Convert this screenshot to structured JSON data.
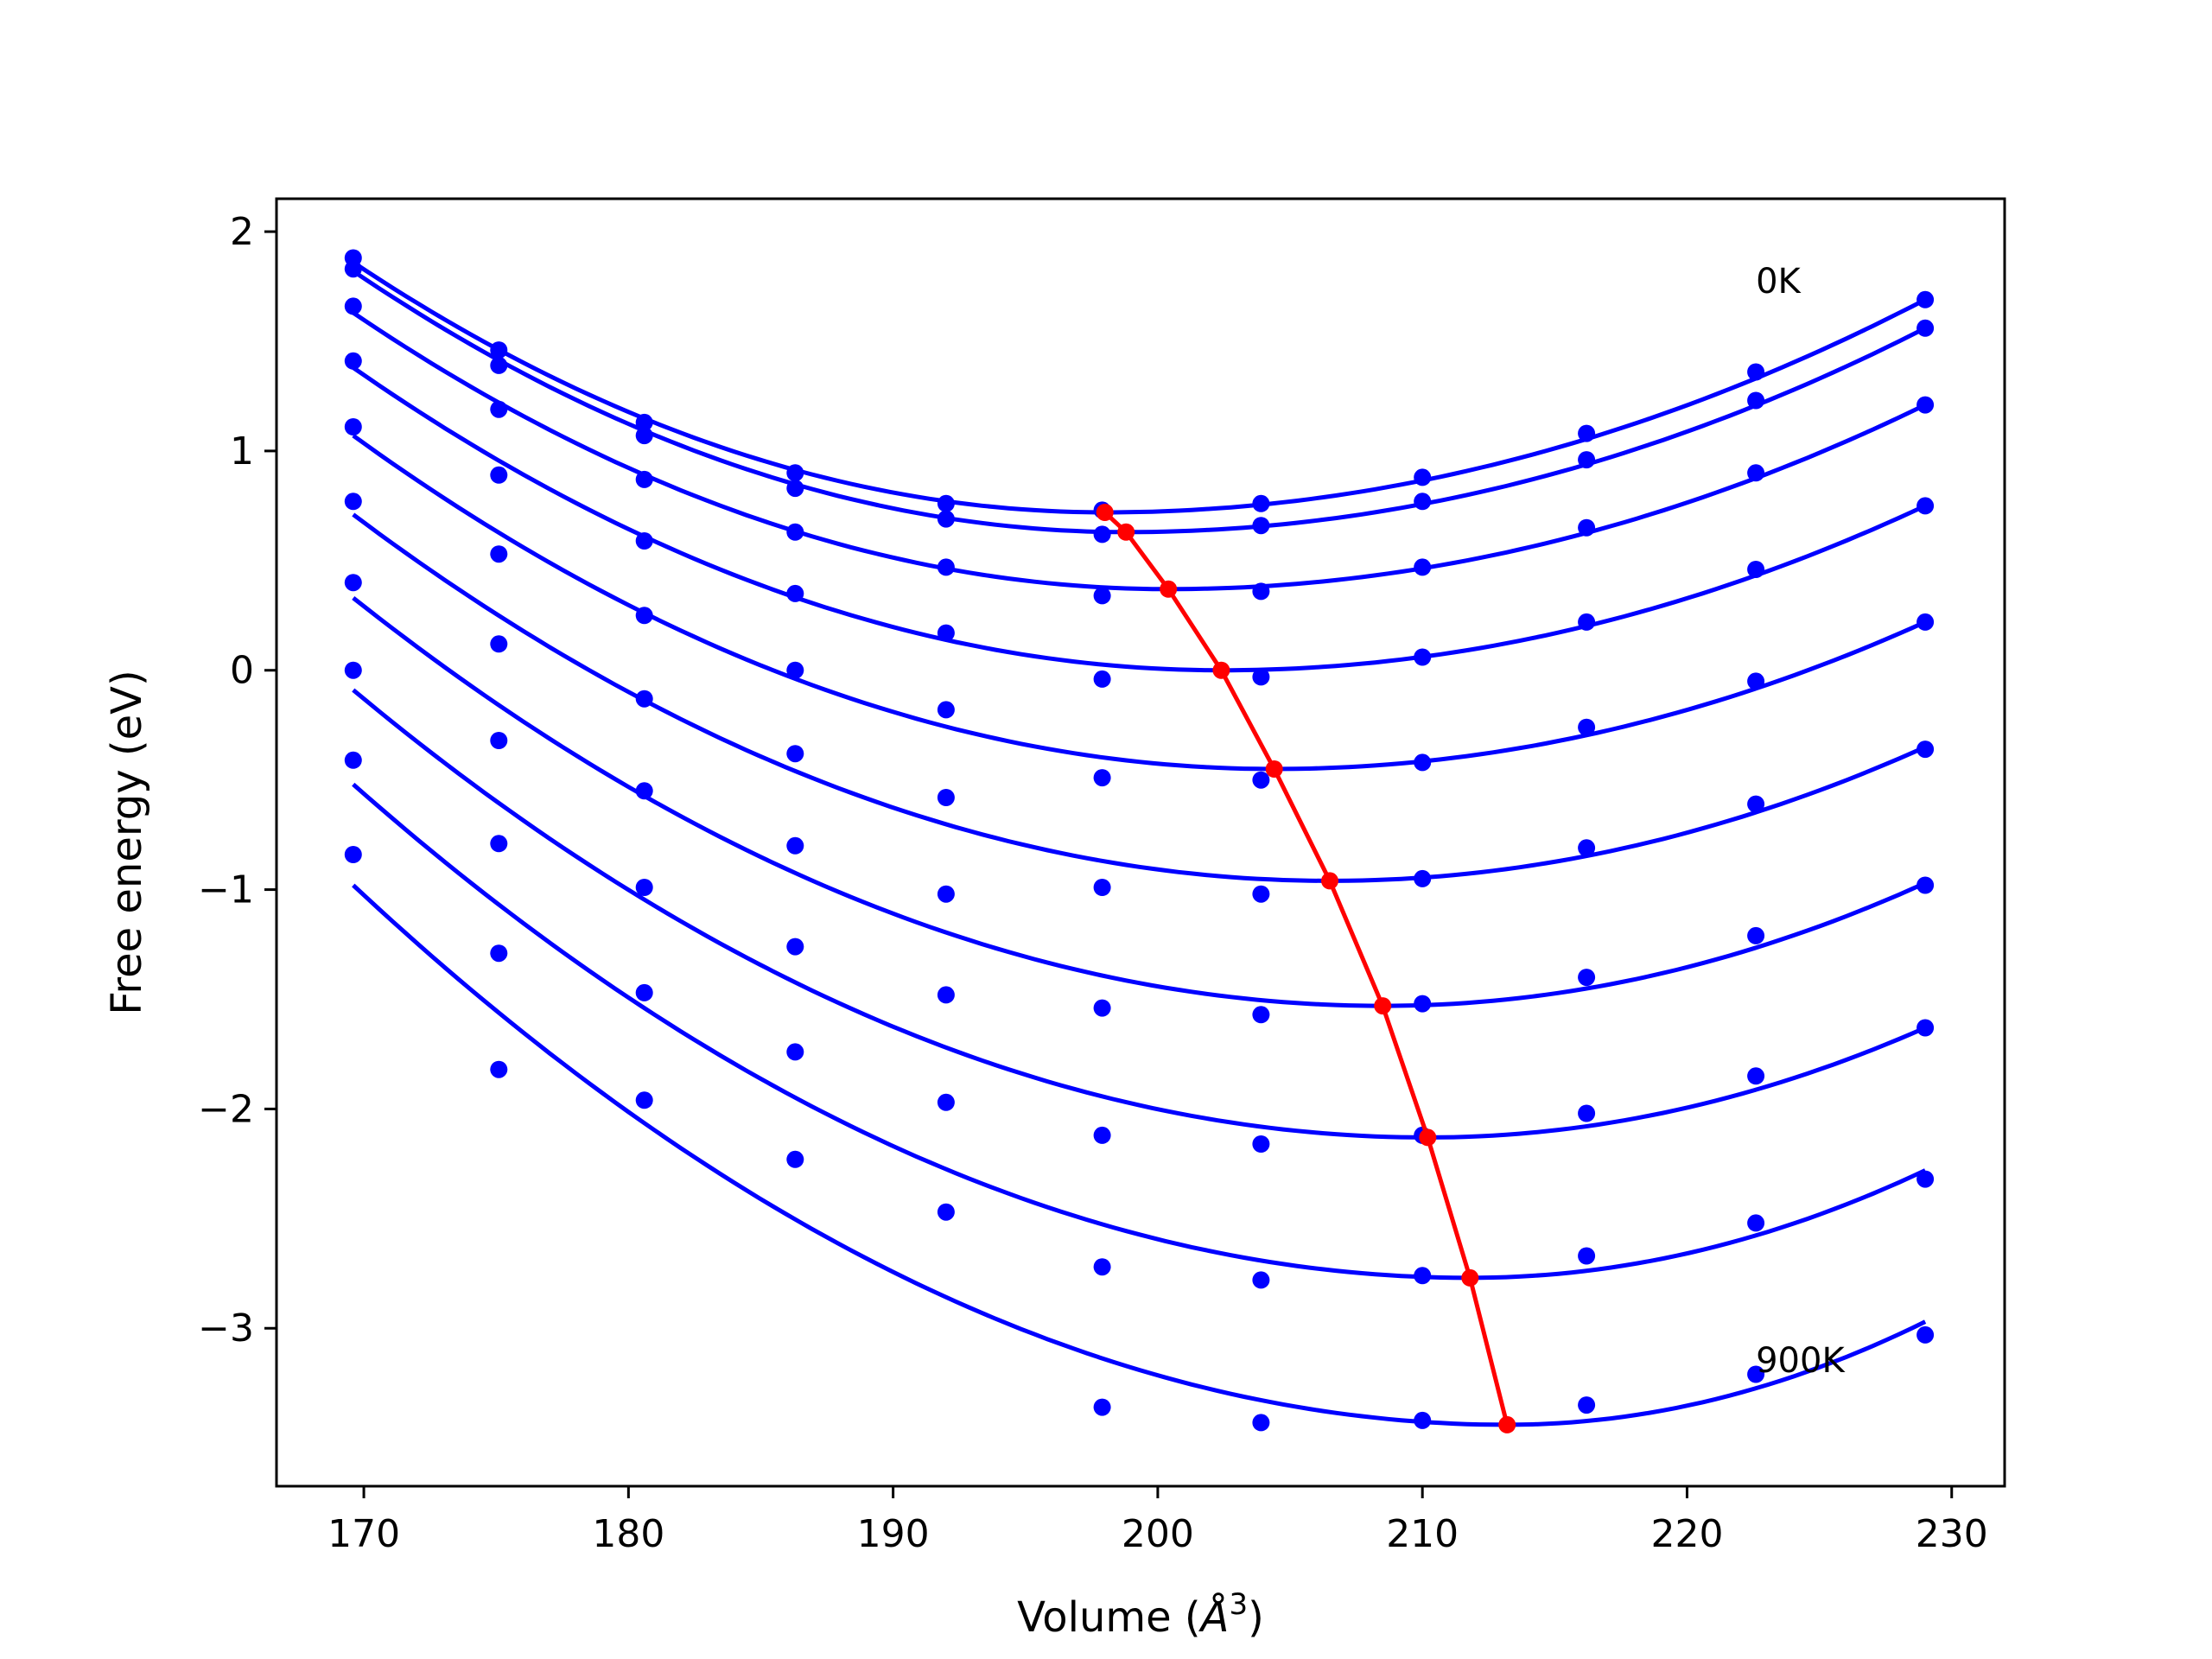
{
  "chart_data": {
    "type": "line",
    "xlabel_main": "Volume (",
    "xlabel_unit": "Å",
    "xlabel_exp": "3",
    "xlabel_close": ")",
    "ylabel": "Free energy (eV)",
    "xlim": [
      166.7,
      232.0
    ],
    "ylim": [
      -3.72,
      2.15
    ],
    "xticks": [
      170,
      180,
      190,
      200,
      210,
      220,
      230
    ],
    "yticks": [
      2,
      1,
      0,
      -1,
      -2,
      -3
    ],
    "xtick_labels": [
      "170",
      "180",
      "190",
      "200",
      "210",
      "220",
      "230"
    ],
    "ytick_labels": [
      "2",
      "1",
      "0",
      "−1",
      "−2",
      "−3"
    ],
    "annotations": [
      {
        "text": "0K",
        "x": 222.6,
        "y": 1.72
      },
      {
        "text": "900K",
        "x": 222.6,
        "y": -3.2
      }
    ],
    "colors": {
      "points": "#0000ff",
      "fits": "#0000ff",
      "minima": "#ff0000"
    },
    "volumes": [
      169.6,
      175.1,
      180.6,
      186.3,
      192.0,
      197.9,
      203.9,
      210.0,
      216.2,
      222.6,
      229.0
    ],
    "points": [
      [
        1.88,
        1.46,
        1.13,
        0.9,
        0.76,
        0.73,
        0.76,
        0.88,
        1.08,
        1.36,
        1.69
      ],
      [
        1.83,
        1.39,
        1.07,
        0.83,
        0.69,
        0.62,
        0.66,
        0.77,
        0.96,
        1.23,
        1.56
      ],
      [
        1.66,
        1.19,
        0.87,
        0.63,
        0.47,
        0.34,
        0.36,
        0.47,
        0.65,
        0.9,
        1.21
      ],
      [
        1.41,
        0.89,
        0.59,
        0.35,
        0.17,
        -0.04,
        -0.03,
        0.06,
        0.22,
        0.46,
        0.75
      ],
      [
        1.11,
        0.53,
        0.25,
        0.0,
        -0.18,
        -0.49,
        -0.5,
        -0.42,
        -0.26,
        -0.05,
        0.22
      ],
      [
        0.77,
        0.12,
        -0.13,
        -0.38,
        -0.58,
        -0.99,
        -1.02,
        -0.95,
        -0.81,
        -0.61,
        -0.36
      ],
      [
        0.4,
        -0.32,
        -0.55,
        -0.8,
        -1.02,
        -1.54,
        -1.57,
        -1.52,
        -1.4,
        -1.21,
        -0.98
      ],
      [
        0.0,
        -0.79,
        -0.99,
        -1.26,
        -1.48,
        -2.12,
        -2.16,
        -2.12,
        -2.02,
        -1.85,
        -1.63
      ],
      [
        -0.41,
        -1.29,
        -1.47,
        -1.74,
        -1.97,
        -2.72,
        -2.78,
        -2.76,
        -2.67,
        -2.52,
        -2.32
      ],
      [
        -0.84,
        -1.82,
        -1.96,
        -2.23,
        -2.47,
        -3.36,
        -3.43,
        -3.42,
        -3.35,
        -3.21,
        -3.03
      ]
    ],
    "fits": [
      {
        "vmin": 198.0,
        "emin": 0.72,
        "e_left": 1.86,
        "e_right": 1.69
      },
      {
        "vmin": 198.8,
        "emin": 0.63,
        "e_left": 1.82,
        "e_right": 1.56
      },
      {
        "vmin": 200.4,
        "emin": 0.37,
        "e_left": 1.63,
        "e_right": 1.21
      },
      {
        "vmin": 202.4,
        "emin": 0.0,
        "e_left": 1.38,
        "e_right": 0.75
      },
      {
        "vmin": 204.4,
        "emin": -0.45,
        "e_left": 1.07,
        "e_right": 0.22
      },
      {
        "vmin": 206.5,
        "emin": -0.96,
        "e_left": 0.71,
        "e_right": -0.35
      },
      {
        "vmin": 208.5,
        "emin": -1.53,
        "e_left": 0.33,
        "e_right": -0.97
      },
      {
        "vmin": 210.2,
        "emin": -2.13,
        "e_left": -0.09,
        "e_right": -1.63
      },
      {
        "vmin": 211.8,
        "emin": -2.77,
        "e_left": -0.52,
        "e_right": -2.28
      },
      {
        "vmin": 213.2,
        "emin": -3.44,
        "e_left": -0.98,
        "e_right": -2.97
      }
    ],
    "minima": {
      "x": [
        198.0,
        198.8,
        200.4,
        202.4,
        204.4,
        206.5,
        208.5,
        210.2,
        211.8,
        213.2
      ],
      "y": [
        0.72,
        0.63,
        0.37,
        0.0,
        -0.45,
        -0.96,
        -1.53,
        -2.13,
        -2.77,
        -3.44
      ]
    }
  }
}
